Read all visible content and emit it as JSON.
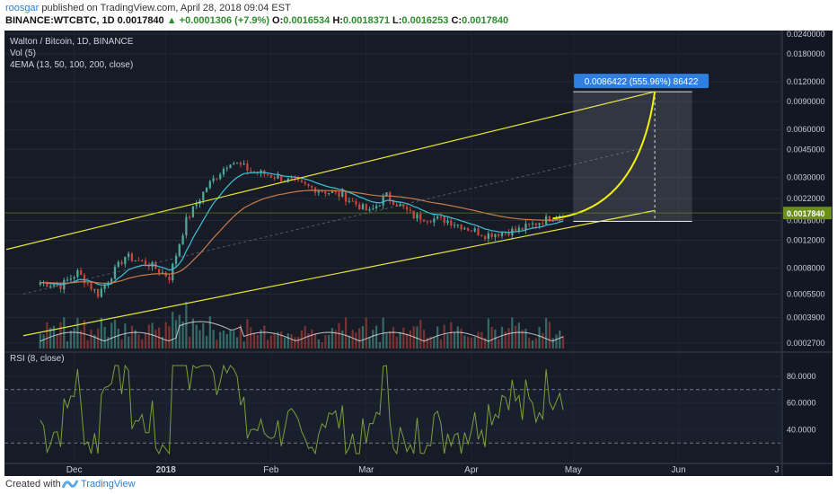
{
  "header": {
    "user": "roosgar",
    "published_text": " published on TradingView.com, April 28, 2018 09:04 EST",
    "symbol": "BINANCE:WTCBTC, 1D",
    "last": "0.0017840",
    "change": "▲ +0.0001306 (+7.9%)",
    "o_label": "O:",
    "o": "0.0016534",
    "h_label": "H:",
    "h": "0.0018371",
    "l_label": "L:",
    "l": "0.0016253",
    "c_label": "C:",
    "c": "0.0017840"
  },
  "legend": {
    "title": "Walton / Bitcoin, 1D, BINANCE",
    "vol": "Vol (5)",
    "ema": "4EMA (13, 50, 100, 200, close)",
    "rsi": "RSI (8, close)"
  },
  "annotation": "0.0086422 (555.96%) 86422",
  "price_badge": "0.0017840",
  "footer": {
    "created_with": "Created with",
    "brand": "TradingView"
  },
  "colors": {
    "background": "#161b26",
    "up": "#4fa99a",
    "down": "#c8453b",
    "channel": "#e6e63a",
    "ema13": "#3cc4d8",
    "ema50": "#c97b4a",
    "rsi": "#7d9e3c",
    "badge": "#2f7fe0",
    "price_badge": "#6b8f1f"
  },
  "chart_data": {
    "type": "candlestick",
    "price_axis": {
      "scale": "log",
      "ticks": [
        "0.0240000",
        "0.0180000",
        "0.0120000",
        "0.0090000",
        "0.0060000",
        "0.0045000",
        "0.0030000",
        "0.0022000",
        "0.0016000",
        "0.0012000",
        "0.0008000",
        "0.0005500",
        "0.0003900",
        "0.0002700"
      ]
    },
    "rsi_axis": {
      "ticks": [
        "80.0000",
        "60.0000",
        "40.0000"
      ],
      "bands": [
        70,
        30
      ]
    },
    "x_axis_labels": [
      "Dec",
      "2018",
      "Feb",
      "Mar",
      "Apr",
      "May",
      "Jun",
      "J"
    ],
    "approx_close_series": [
      {
        "date": "2017-11-25",
        "close": 0.00065
      },
      {
        "date": "2017-12-01",
        "close": 0.00062
      },
      {
        "date": "2017-12-06",
        "close": 0.00075
      },
      {
        "date": "2017-12-12",
        "close": 0.00055
      },
      {
        "date": "2017-12-20",
        "close": 0.00095
      },
      {
        "date": "2017-12-27",
        "close": 0.00085
      },
      {
        "date": "2018-01-02",
        "close": 0.0007
      },
      {
        "date": "2018-01-07",
        "close": 0.0016
      },
      {
        "date": "2018-01-13",
        "close": 0.0026
      },
      {
        "date": "2018-01-20",
        "close": 0.0038
      },
      {
        "date": "2018-01-26",
        "close": 0.0033
      },
      {
        "date": "2018-02-03",
        "close": 0.003
      },
      {
        "date": "2018-02-12",
        "close": 0.0026
      },
      {
        "date": "2018-02-22",
        "close": 0.0023
      },
      {
        "date": "2018-03-02",
        "close": 0.0018
      },
      {
        "date": "2018-03-07",
        "close": 0.0023
      },
      {
        "date": "2018-03-15",
        "close": 0.0017
      },
      {
        "date": "2018-03-25",
        "close": 0.0016
      },
      {
        "date": "2018-04-05",
        "close": 0.0013
      },
      {
        "date": "2018-04-15",
        "close": 0.0014
      },
      {
        "date": "2018-04-28",
        "close": 0.001784
      }
    ],
    "projection": {
      "target": 0.0104,
      "gain": "0.0086422 (555.96%) 86422"
    },
    "grid": true
  }
}
